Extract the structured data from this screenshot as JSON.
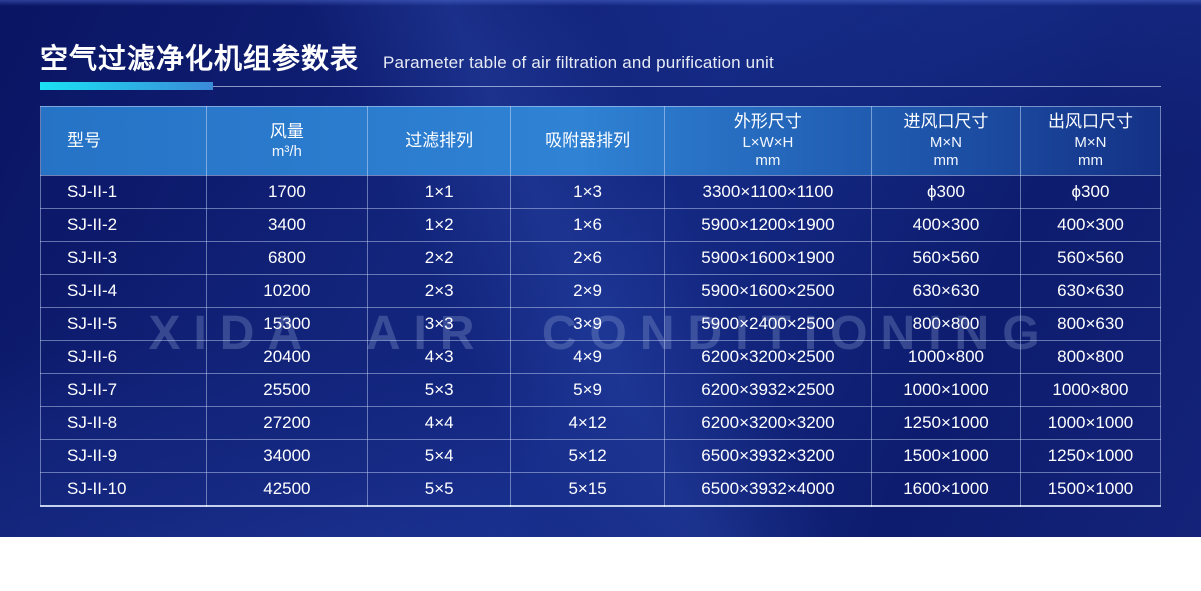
{
  "page": {
    "title_zh": "空气过滤净化机组参数表",
    "title_en": "Parameter table of air filtration and purification unit",
    "watermark": "XIDA AIR CONDITIONING"
  },
  "colors": {
    "accent_cyan": "#1ae2f4",
    "header_blue_left": "#2673c6",
    "header_blue_mid": "#2f82d4",
    "header_blue_right": "#143186",
    "panel_navy": "#101f74",
    "text_white": "#ffffff"
  },
  "table": {
    "columns": [
      {
        "key": "model",
        "zh": "型号",
        "sub": "",
        "unit": ""
      },
      {
        "key": "air-volume",
        "zh": "风量",
        "sub": "m³/h",
        "unit": ""
      },
      {
        "key": "filter-array",
        "zh": "过滤排列",
        "sub": "",
        "unit": ""
      },
      {
        "key": "adsorber-array",
        "zh": "吸附器排列",
        "sub": "",
        "unit": ""
      },
      {
        "key": "dimensions",
        "zh": "外形尺寸",
        "sub": "L×W×H",
        "unit": "mm"
      },
      {
        "key": "inlet-size",
        "zh": "进风口尺寸",
        "sub": "M×N",
        "unit": "mm"
      },
      {
        "key": "outlet-size",
        "zh": "出风口尺寸",
        "sub": "M×N",
        "unit": "mm"
      }
    ],
    "col_widths": [
      "14.8%",
      "14.4%",
      "12.8%",
      "13.7%",
      "18.5%",
      "13.3%",
      "12.5%"
    ],
    "rows": [
      [
        "SJ-II-1",
        "1700",
        "1×1",
        "1×3",
        "3300×1100×1100",
        "ϕ300",
        "ϕ300"
      ],
      [
        "SJ-II-2",
        "3400",
        "1×2",
        "1×6",
        "5900×1200×1900",
        "400×300",
        "400×300"
      ],
      [
        "SJ-II-3",
        "6800",
        "2×2",
        "2×6",
        "5900×1600×1900",
        "560×560",
        "560×560"
      ],
      [
        "SJ-II-4",
        "10200",
        "2×3",
        "2×9",
        "5900×1600×2500",
        "630×630",
        "630×630"
      ],
      [
        "SJ-II-5",
        "15300",
        "3×3",
        "3×9",
        "5900×2400×2500",
        "800×800",
        "800×630"
      ],
      [
        "SJ-II-6",
        "20400",
        "4×3",
        "4×9",
        "6200×3200×2500",
        "1000×800",
        "800×800"
      ],
      [
        "SJ-II-7",
        "25500",
        "5×3",
        "5×9",
        "6200×3932×2500",
        "1000×1000",
        "1000×800"
      ],
      [
        "SJ-II-8",
        "27200",
        "4×4",
        "4×12",
        "6200×3200×3200",
        "1250×1000",
        "1000×1000"
      ],
      [
        "SJ-II-9",
        "34000",
        "5×4",
        "5×12",
        "6500×3932×3200",
        "1500×1000",
        "1250×1000"
      ],
      [
        "SJ-II-10",
        "42500",
        "5×5",
        "5×15",
        "6500×3932×4000",
        "1600×1000",
        "1500×1000"
      ]
    ]
  }
}
